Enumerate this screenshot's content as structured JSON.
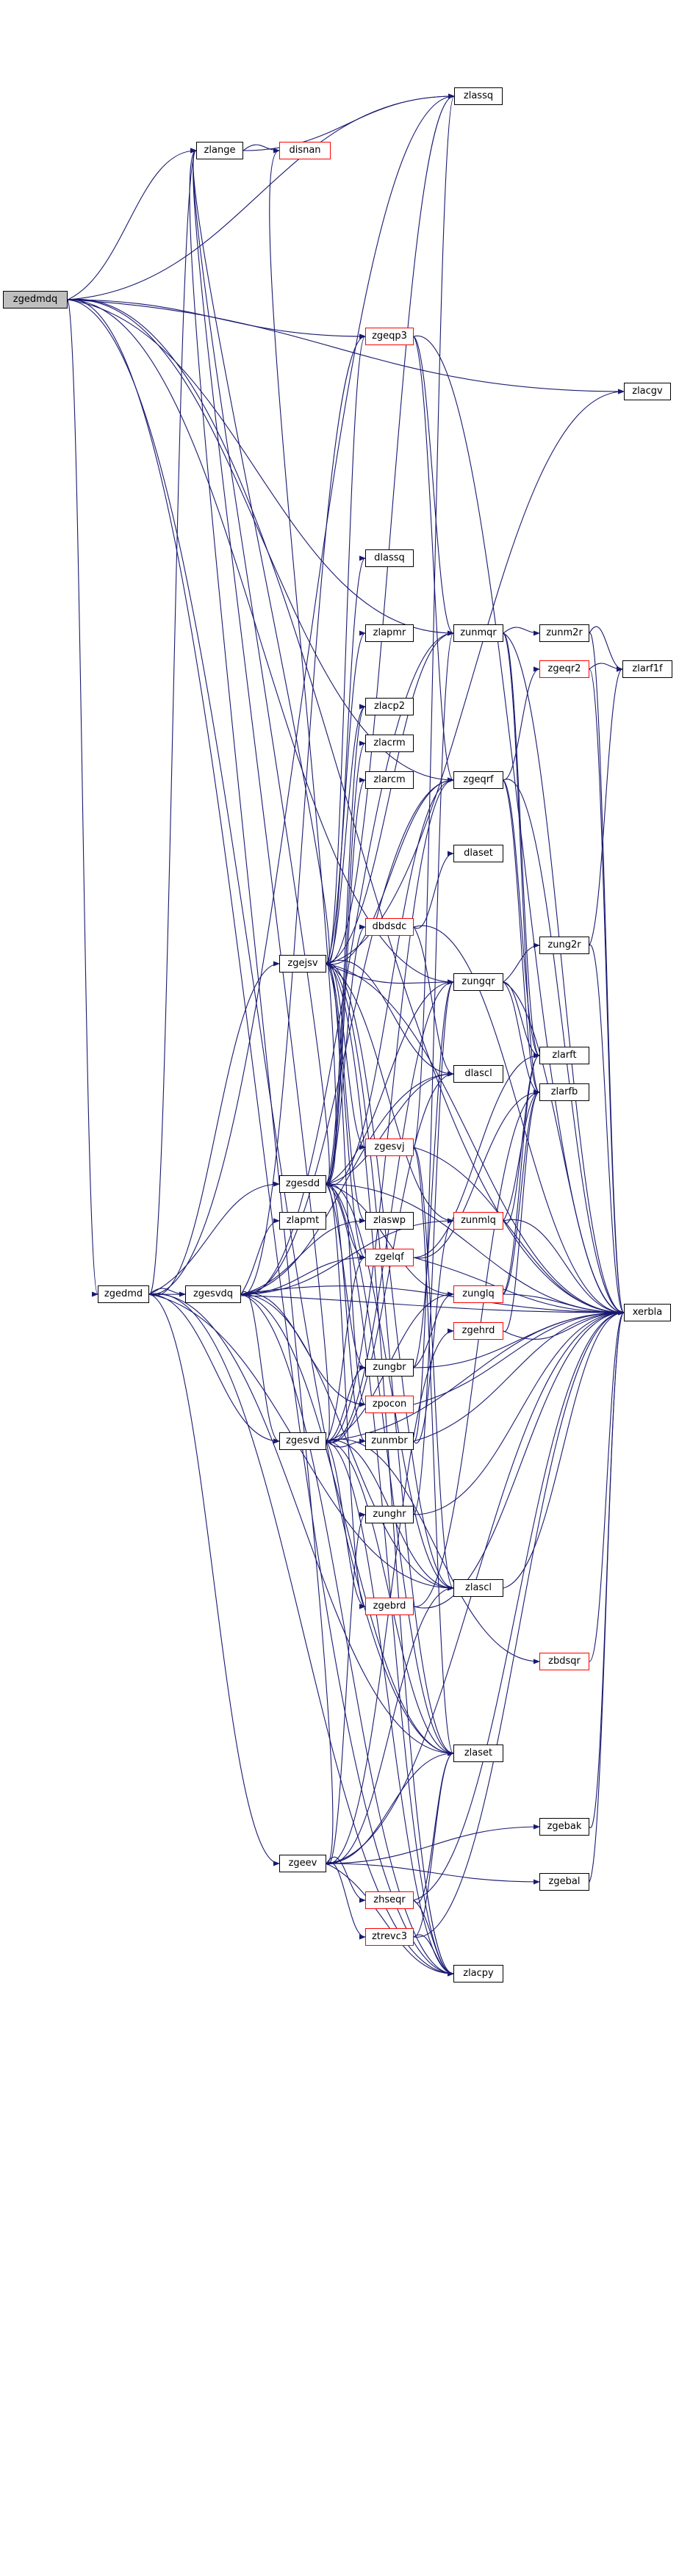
{
  "colors": {
    "edge": "#191970",
    "node_border": "#000000",
    "node_border_red": "#ff0000",
    "root_fill": "#bfbfbf",
    "background": "#ffffff"
  },
  "nodes": {
    "zgedmdq": "zgedmdq",
    "zlange": "zlange",
    "disnan": "disnan",
    "zlassq": "zlassq",
    "zgeqp3": "zgeqp3",
    "zlacgv": "zlacgv",
    "dlassq": "dlassq",
    "zlapmr": "zlapmr",
    "zunmqr": "zunmqr",
    "zunm2r": "zunm2r",
    "zgeqr2": "zgeqr2",
    "zlarf1f": "zlarf1f",
    "zlacp2": "zlacp2",
    "zlacrm": "zlacrm",
    "zlarcm": "zlarcm",
    "zgeqrf": "zgeqrf",
    "dlaset": "dlaset",
    "dbdsdc": "dbdsdc",
    "zgejsv": "zgejsv",
    "zungqr": "zungqr",
    "zung2r": "zung2r",
    "zlarft": "zlarft",
    "zlarfb": "zlarfb",
    "dlascl": "dlascl",
    "zgesvj": "zgesvj",
    "zgesdd": "zgesdd",
    "zlapmt": "zlapmt",
    "zlaswp": "zlaswp",
    "zunmlq": "zunmlq",
    "zgelqf": "zgelqf",
    "zgedmd": "zgedmd",
    "zgesvdq": "zgesvdq",
    "zunglq": "zunglq",
    "xerbla": "xerbla",
    "zgehrd": "zgehrd",
    "zungbr": "zungbr",
    "zpocon": "zpocon",
    "zgesvd": "zgesvd",
    "zunmbr": "zunmbr",
    "zunghr": "zunghr",
    "zlascl": "zlascl",
    "zgebrd": "zgebrd",
    "zbdsqr": "zbdsqr",
    "zlaset": "zlaset",
    "zgebak": "zgebak",
    "zgeev": "zgeev",
    "zgebal": "zgebal",
    "zhseqr": "zhseqr",
    "ztrevc3": "ztrevc3",
    "zlacpy": "zlacpy"
  }
}
